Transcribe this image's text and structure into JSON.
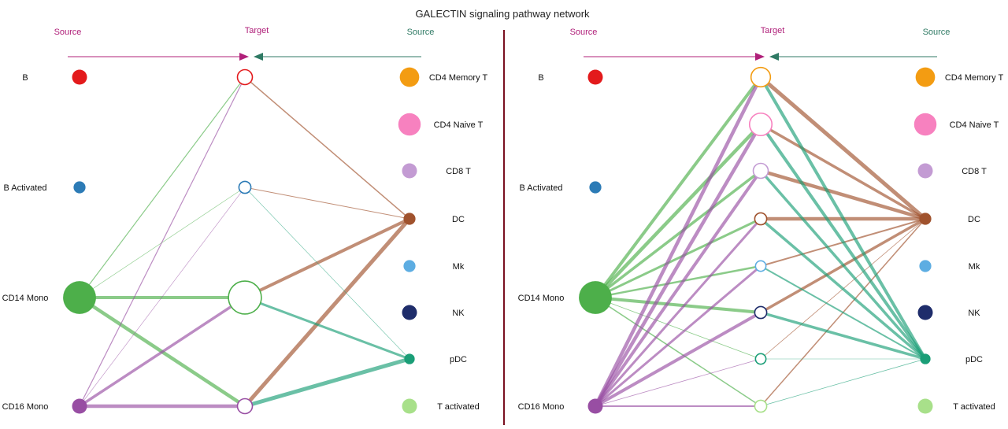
{
  "title": "GALECTIN signaling pathway network",
  "colors": {
    "divider": "#7a1020",
    "source_left": "#b0207a",
    "source_right": "#2f7a64",
    "target_head": "#444444"
  },
  "panels": [
    {
      "id": "left",
      "headers": {
        "source_left": "Source",
        "target": "Target",
        "source_right": "Source"
      },
      "source_left_nodes": [
        {
          "label": "B",
          "color": "#e31a1c",
          "size": 1.0
        },
        {
          "label": "B Activated",
          "color": "#2c7bb6",
          "size": 0.8
        },
        {
          "label": "CD14 Mono",
          "color": "#4daf4a",
          "size": 2.2
        },
        {
          "label": "CD16 Mono",
          "color": "#984ea3",
          "size": 1.0
        }
      ],
      "target_nodes": [
        {
          "label": "B",
          "color": "#e31a1c",
          "size": 1.0
        },
        {
          "label": "B Activated",
          "color": "#2c7bb6",
          "size": 0.8
        },
        {
          "label": "CD14 Mono",
          "color": "#4daf4a",
          "size": 2.2
        },
        {
          "label": "CD16 Mono",
          "color": "#984ea3",
          "size": 1.0
        }
      ],
      "source_right_nodes": [
        {
          "label": "CD4 Memory T",
          "color": "#f39c12",
          "size": 1.3
        },
        {
          "label": "CD4 Naive T",
          "color": "#f781bf",
          "size": 1.5
        },
        {
          "label": "CD8 T",
          "color": "#c39bd3",
          "size": 1.0
        },
        {
          "label": "DC",
          "color": "#a0522d",
          "size": 0.8
        },
        {
          "label": "Mk",
          "color": "#5dade2",
          "size": 0.8
        },
        {
          "label": "NK",
          "color": "#1f2d6b",
          "size": 1.0
        },
        {
          "label": "pDC",
          "color": "#1a9e77",
          "size": 0.7
        },
        {
          "label": "T activated",
          "color": "#a8e08a",
          "size": 1.0
        }
      ],
      "edges": [
        {
          "from": "L",
          "si": 2,
          "ti": 0,
          "w": 1.2
        },
        {
          "from": "L",
          "si": 2,
          "ti": 1,
          "w": 0.6
        },
        {
          "from": "L",
          "si": 2,
          "ti": 2,
          "w": 4
        },
        {
          "from": "L",
          "si": 2,
          "ti": 3,
          "w": 4.5
        },
        {
          "from": "L",
          "si": 3,
          "ti": 0,
          "w": 1.2
        },
        {
          "from": "L",
          "si": 3,
          "ti": 1,
          "w": 0.6
        },
        {
          "from": "L",
          "si": 3,
          "ti": 2,
          "w": 3.5
        },
        {
          "from": "L",
          "si": 3,
          "ti": 3,
          "w": 4.5
        },
        {
          "from": "R",
          "si": 3,
          "ti": 0,
          "w": 1.5
        },
        {
          "from": "R",
          "si": 3,
          "ti": 1,
          "w": 1
        },
        {
          "from": "R",
          "si": 3,
          "ti": 2,
          "w": 4
        },
        {
          "from": "R",
          "si": 3,
          "ti": 3,
          "w": 5
        },
        {
          "from": "R",
          "si": 6,
          "ti": 1,
          "w": 0.6
        },
        {
          "from": "R",
          "si": 6,
          "ti": 2,
          "w": 3
        },
        {
          "from": "R",
          "si": 6,
          "ti": 3,
          "w": 5
        }
      ]
    },
    {
      "id": "right",
      "headers": {
        "source_left": "Source",
        "target": "Target",
        "source_right": "Source"
      },
      "source_left_nodes": [
        {
          "label": "B",
          "color": "#e31a1c",
          "size": 1.0
        },
        {
          "label": "B Activated",
          "color": "#2c7bb6",
          "size": 0.8
        },
        {
          "label": "CD14 Mono",
          "color": "#4daf4a",
          "size": 2.2
        },
        {
          "label": "CD16 Mono",
          "color": "#984ea3",
          "size": 1.0
        }
      ],
      "target_nodes": [
        {
          "label": "CD4 Memory T",
          "color": "#f39c12",
          "size": 1.3
        },
        {
          "label": "CD4 Naive T",
          "color": "#f781bf",
          "size": 1.5
        },
        {
          "label": "CD8 T",
          "color": "#c39bd3",
          "size": 1.0
        },
        {
          "label": "DC",
          "color": "#a0522d",
          "size": 0.8
        },
        {
          "label": "Mk",
          "color": "#5dade2",
          "size": 0.7
        },
        {
          "label": "NK",
          "color": "#1f2d6b",
          "size": 0.8
        },
        {
          "label": "pDC",
          "color": "#1a9e77",
          "size": 0.7
        },
        {
          "label": "T activated",
          "color": "#a8e08a",
          "size": 0.8
        }
      ],
      "source_right_nodes": [
        {
          "label": "CD4 Memory T",
          "color": "#f39c12",
          "size": 1.3
        },
        {
          "label": "CD4 Naive T",
          "color": "#f781bf",
          "size": 1.5
        },
        {
          "label": "CD8 T",
          "color": "#c39bd3",
          "size": 1.0
        },
        {
          "label": "DC",
          "color": "#a0522d",
          "size": 0.8
        },
        {
          "label": "Mk",
          "color": "#5dade2",
          "size": 0.8
        },
        {
          "label": "NK",
          "color": "#1f2d6b",
          "size": 1.0
        },
        {
          "label": "pDC",
          "color": "#1a9e77",
          "size": 0.7
        },
        {
          "label": "T activated",
          "color": "#a8e08a",
          "size": 1.0
        }
      ],
      "edges": [
        {
          "from": "L",
          "si": 2,
          "ti": 0,
          "w": 4
        },
        {
          "from": "L",
          "si": 2,
          "ti": 1,
          "w": 4.5
        },
        {
          "from": "L",
          "si": 2,
          "ti": 2,
          "w": 3.5
        },
        {
          "from": "L",
          "si": 2,
          "ti": 3,
          "w": 3
        },
        {
          "from": "L",
          "si": 2,
          "ti": 4,
          "w": 2.5
        },
        {
          "from": "L",
          "si": 2,
          "ti": 5,
          "w": 4
        },
        {
          "from": "L",
          "si": 2,
          "ti": 6,
          "w": 0.8
        },
        {
          "from": "L",
          "si": 2,
          "ti": 7,
          "w": 1.5
        },
        {
          "from": "L",
          "si": 3,
          "ti": 0,
          "w": 4.5
        },
        {
          "from": "L",
          "si": 3,
          "ti": 1,
          "w": 4.5
        },
        {
          "from": "L",
          "si": 3,
          "ti": 2,
          "w": 4
        },
        {
          "from": "L",
          "si": 3,
          "ti": 3,
          "w": 3
        },
        {
          "from": "L",
          "si": 3,
          "ti": 4,
          "w": 3
        },
        {
          "from": "L",
          "si": 3,
          "ti": 5,
          "w": 4
        },
        {
          "from": "L",
          "si": 3,
          "ti": 6,
          "w": 0.8
        },
        {
          "from": "L",
          "si": 3,
          "ti": 7,
          "w": 2
        },
        {
          "from": "R",
          "si": 3,
          "ti": 0,
          "w": 5
        },
        {
          "from": "R",
          "si": 3,
          "ti": 1,
          "w": 3.5
        },
        {
          "from": "R",
          "si": 3,
          "ti": 2,
          "w": 4.5
        },
        {
          "from": "R",
          "si": 3,
          "ti": 3,
          "w": 4.5
        },
        {
          "from": "R",
          "si": 3,
          "ti": 4,
          "w": 2
        },
        {
          "from": "R",
          "si": 3,
          "ti": 5,
          "w": 3.5
        },
        {
          "from": "R",
          "si": 3,
          "ti": 6,
          "w": 0.8
        },
        {
          "from": "R",
          "si": 3,
          "ti": 7,
          "w": 1.5
        },
        {
          "from": "R",
          "si": 6,
          "ti": 0,
          "w": 4
        },
        {
          "from": "R",
          "si": 6,
          "ti": 1,
          "w": 4
        },
        {
          "from": "R",
          "si": 6,
          "ti": 2,
          "w": 3.5
        },
        {
          "from": "R",
          "si": 6,
          "ti": 3,
          "w": 3.5
        },
        {
          "from": "R",
          "si": 6,
          "ti": 4,
          "w": 2
        },
        {
          "from": "R",
          "si": 6,
          "ti": 5,
          "w": 3.5
        },
        {
          "from": "R",
          "si": 6,
          "ti": 6,
          "w": 0.5
        },
        {
          "from": "R",
          "si": 6,
          "ti": 7,
          "w": 0.8
        }
      ]
    }
  ]
}
